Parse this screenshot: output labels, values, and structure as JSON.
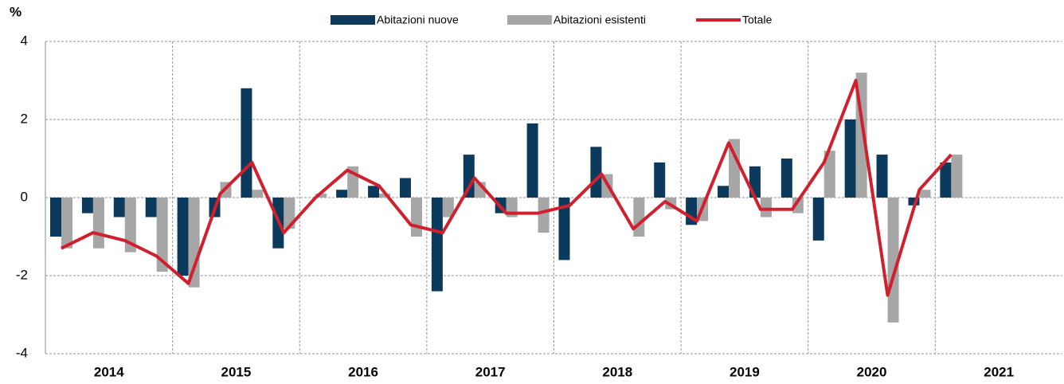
{
  "chart_data": {
    "type": "bar_line",
    "y_unit": "%",
    "years": [
      "2014",
      "2015",
      "2016",
      "2017",
      "2018",
      "2019",
      "2020",
      "2021"
    ],
    "series": [
      {
        "name": "Abitazioni nuove",
        "type": "bar",
        "color": "#0c3a5c",
        "values": [
          -1.0,
          -0.4,
          -0.5,
          -0.5,
          -2.0,
          -0.5,
          2.8,
          -1.3,
          0.0,
          0.2,
          0.3,
          0.5,
          -2.4,
          1.1,
          -0.4,
          1.9,
          -1.6,
          1.3,
          0.0,
          0.9,
          -0.7,
          0.3,
          0.8,
          1.0,
          -1.1,
          2.0,
          1.1,
          -0.2,
          0.9,
          null,
          null,
          null
        ]
      },
      {
        "name": "Abitazioni esistenti",
        "type": "bar",
        "color": "#a6a6a6",
        "values": [
          -1.3,
          -1.3,
          -1.4,
          -1.9,
          -2.3,
          0.4,
          0.2,
          -0.8,
          0.1,
          0.8,
          0.1,
          -1.0,
          -0.5,
          0.4,
          -0.5,
          -0.9,
          0.0,
          0.6,
          -1.0,
          -0.3,
          -0.6,
          1.5,
          -0.5,
          -0.4,
          1.2,
          3.2,
          -3.2,
          0.2,
          1.1,
          null,
          null,
          null
        ]
      },
      {
        "name": "Totale",
        "type": "line",
        "color": "#d0202e",
        "values": [
          -1.3,
          -0.9,
          -1.1,
          -1.5,
          -2.2,
          0.1,
          0.9,
          -0.9,
          0.0,
          0.7,
          0.3,
          -0.7,
          -0.9,
          0.5,
          -0.4,
          -0.4,
          -0.2,
          0.6,
          -0.8,
          -0.1,
          -0.6,
          1.4,
          -0.3,
          -0.3,
          0.9,
          3.0,
          -2.5,
          0.2,
          1.1,
          null,
          null,
          null
        ]
      }
    ],
    "ylim": [
      -4,
      4
    ],
    "yticks": [
      -4,
      -2,
      0,
      2,
      4
    ],
    "grid": true,
    "legend": "top"
  }
}
